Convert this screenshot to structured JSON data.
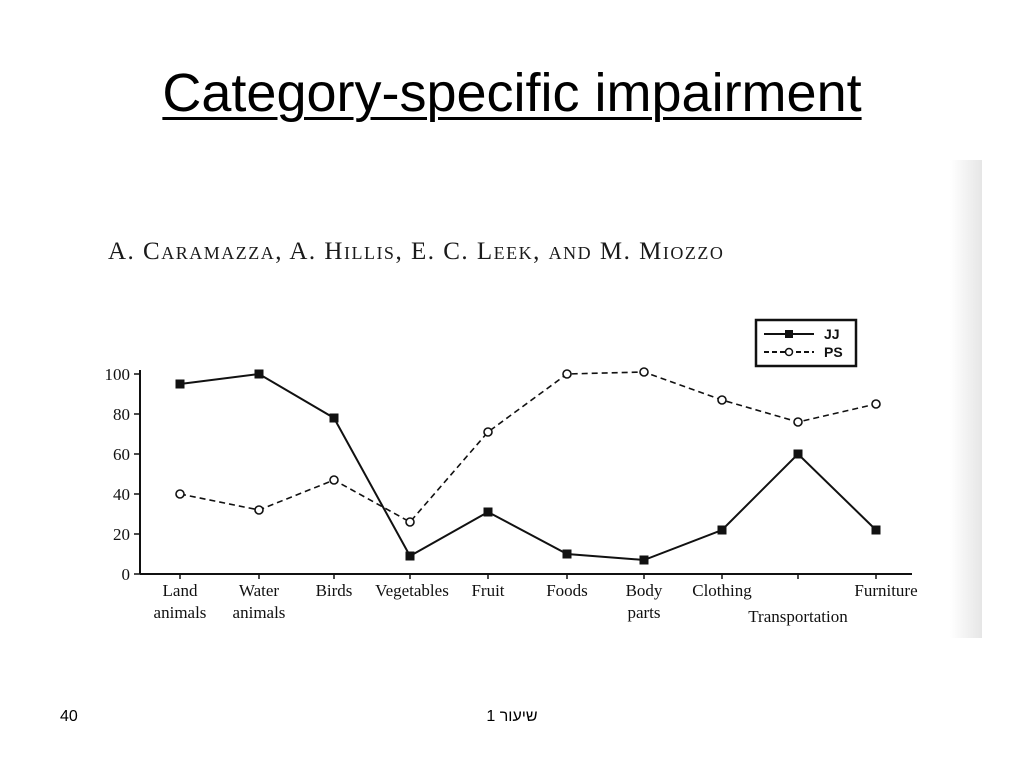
{
  "slide": {
    "title": "Category-specific impairment",
    "authors": "A. Caramazza, A. Hillis, E. C. Leek, and M. Miozzo",
    "page_number": "40",
    "footer": "שיעור 1"
  },
  "chart_data": {
    "type": "line",
    "categories": [
      "Land animals",
      "Water animals",
      "Birds",
      "Vegetables",
      "Fruit",
      "Foods",
      "Body parts",
      "Clothing",
      "Transportation",
      "Furniture"
    ],
    "category_lines": [
      [
        "Land",
        "animals"
      ],
      [
        "Water",
        "animals"
      ],
      [
        "Birds"
      ],
      [
        "Vegetables"
      ],
      [
        "Fruit"
      ],
      [
        "Foods"
      ],
      [
        "Body",
        "parts"
      ],
      [
        "Clothing"
      ],
      [
        "Transportation"
      ],
      [
        "Furniture"
      ]
    ],
    "series": [
      {
        "name": "JJ",
        "style": "solid",
        "marker": "filled-square",
        "values": [
          95,
          100,
          78,
          9,
          31,
          10,
          7,
          22,
          60,
          22
        ]
      },
      {
        "name": "PS",
        "style": "dashed",
        "marker": "open-circle",
        "values": [
          40,
          32,
          47,
          26,
          71,
          100,
          101,
          87,
          76,
          85
        ]
      }
    ],
    "y_ticks": [
      "0",
      "20",
      "40",
      "60",
      "80",
      "100"
    ],
    "ylim": [
      0,
      100
    ],
    "grid": false,
    "legend_position": "top-right",
    "colors": {
      "line": "#111111",
      "background": "#ffffff"
    }
  }
}
